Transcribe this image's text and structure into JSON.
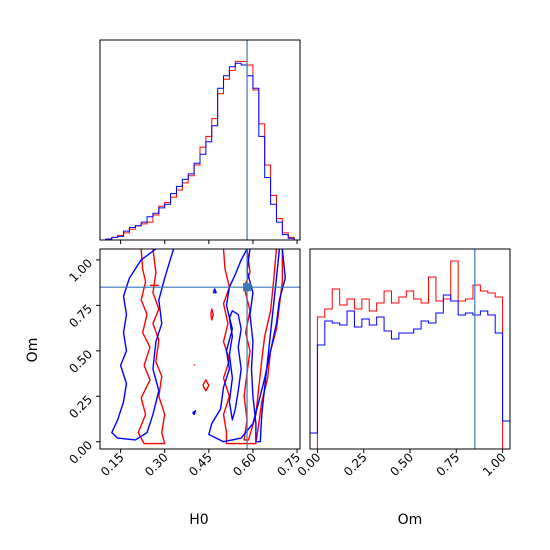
{
  "chart_data": [
    {
      "panel": "marginal-H0",
      "type": "histogram",
      "xlim": [
        0.08,
        0.76
      ],
      "xticks": [
        0.15,
        0.3,
        0.45,
        0.6,
        0.75
      ],
      "truth": 0.58,
      "series": [
        {
          "color": "#ff0000",
          "bin_edges": [
            0.08,
            0.1,
            0.12,
            0.14,
            0.16,
            0.18,
            0.2,
            0.22,
            0.24,
            0.26,
            0.28,
            0.3,
            0.32,
            0.34,
            0.36,
            0.38,
            0.4,
            0.42,
            0.44,
            0.46,
            0.48,
            0.5,
            0.52,
            0.54,
            0.56,
            0.58,
            0.6,
            0.62,
            0.64,
            0.66,
            0.68,
            0.7,
            0.72,
            0.74,
            0.76
          ],
          "counts": [
            0,
            0.5,
            1.5,
            2.5,
            4,
            6,
            8,
            9,
            10,
            14,
            19,
            21,
            24,
            28,
            32,
            36,
            42,
            52,
            58,
            68,
            82,
            90,
            95,
            100,
            100,
            98,
            84,
            65,
            42,
            25,
            12,
            4,
            1.5,
            0
          ]
        },
        {
          "color": "#0000ff",
          "bin_edges": [
            0.08,
            0.1,
            0.12,
            0.14,
            0.16,
            0.18,
            0.2,
            0.22,
            0.24,
            0.26,
            0.28,
            0.3,
            0.32,
            0.34,
            0.36,
            0.38,
            0.4,
            0.42,
            0.44,
            0.46,
            0.48,
            0.5,
            0.52,
            0.54,
            0.56,
            0.58,
            0.6,
            0.62,
            0.64,
            0.66,
            0.68,
            0.7,
            0.72,
            0.74,
            0.76
          ],
          "counts": [
            0,
            0.5,
            1.5,
            2,
            5,
            7,
            8,
            10,
            13,
            15,
            18,
            20,
            26,
            30,
            34,
            37,
            43,
            48,
            55,
            64,
            85,
            92,
            97,
            99,
            98,
            92,
            85,
            58,
            35,
            20,
            10,
            3,
            1,
            0
          ]
        }
      ]
    },
    {
      "panel": "marginal-Om",
      "type": "histogram",
      "xlim": [
        -0.04,
        1.04
      ],
      "xticks": [
        0.0,
        0.25,
        0.5,
        0.75,
        1.0
      ],
      "xlabel": "Om",
      "truth": 0.85,
      "series": [
        {
          "color": "#ff0000",
          "bin_edges": [
            0,
            0.04,
            0.08,
            0.12,
            0.16,
            0.2,
            0.24,
            0.28,
            0.32,
            0.36,
            0.4,
            0.44,
            0.48,
            0.52,
            0.56,
            0.6,
            0.64,
            0.68,
            0.72,
            0.76,
            0.8,
            0.84,
            0.88,
            0.92,
            0.96,
            1.0
          ],
          "counts": [
            0.66,
            0.7,
            0.8,
            0.72,
            0.75,
            0.7,
            0.75,
            0.69,
            0.73,
            0.79,
            0.73,
            0.76,
            0.79,
            0.75,
            0.73,
            0.86,
            0.74,
            0.75,
            0.94,
            0.74,
            0.75,
            0.82,
            0.79,
            0.78,
            0.76
          ]
        },
        {
          "color": "#0000ff",
          "bin_edges": [
            -0.04,
            0,
            0.04,
            0.08,
            0.12,
            0.16,
            0.2,
            0.24,
            0.28,
            0.32,
            0.36,
            0.4,
            0.44,
            0.48,
            0.52,
            0.56,
            0.6,
            0.64,
            0.68,
            0.72,
            0.76,
            0.8,
            0.84,
            0.88,
            0.92,
            0.96,
            1.0,
            1.04
          ],
          "counts": [
            0.08,
            0.52,
            0.64,
            0.63,
            0.62,
            0.69,
            0.61,
            0.65,
            0.62,
            0.66,
            0.59,
            0.55,
            0.58,
            0.58,
            0.6,
            0.64,
            0.63,
            0.68,
            0.77,
            0.74,
            0.67,
            0.68,
            0.67,
            0.69,
            0.67,
            0.58,
            0.14
          ]
        }
      ]
    },
    {
      "panel": "joint-H0-Om",
      "type": "contour",
      "xlabel": "H0",
      "ylabel": "Om",
      "xlim": [
        0.08,
        0.76
      ],
      "ylim": [
        -0.04,
        1.06
      ],
      "xticks": [
        0.15,
        0.3,
        0.45,
        0.6,
        0.75
      ],
      "yticks": [
        0.0,
        0.25,
        0.5,
        0.75,
        1.0
      ],
      "truth": [
        0.58,
        0.85
      ],
      "series": [
        {
          "color": "#ff0000",
          "contours": [
            [
              [
                0.22,
                1.06
              ],
              [
                0.225,
                0.95
              ],
              [
                0.235,
                0.88
              ],
              [
                0.22,
                0.78
              ],
              [
                0.24,
                0.7
              ],
              [
                0.225,
                0.6
              ],
              [
                0.25,
                0.52
              ],
              [
                0.23,
                0.42
              ],
              [
                0.25,
                0.34
              ],
              [
                0.22,
                0.24
              ],
              [
                0.235,
                0.15
              ],
              [
                0.21,
                0.05
              ],
              [
                0.23,
                -0.01
              ],
              [
                0.3,
                -0.01
              ],
              [
                0.29,
                0.05
              ],
              [
                0.3,
                0.15
              ],
              [
                0.28,
                0.25
              ],
              [
                0.29,
                0.36
              ],
              [
                0.27,
                0.44
              ],
              [
                0.28,
                0.56
              ],
              [
                0.26,
                0.65
              ],
              [
                0.28,
                0.73
              ],
              [
                0.26,
                0.82
              ],
              [
                0.27,
                0.93
              ],
              [
                0.26,
                1.06
              ]
            ],
            [
              [
                0.5,
                1.06
              ],
              [
                0.505,
                0.95
              ],
              [
                0.52,
                0.85
              ],
              [
                0.5,
                0.76
              ],
              [
                0.515,
                0.65
              ],
              [
                0.5,
                0.55
              ],
              [
                0.52,
                0.45
              ],
              [
                0.5,
                0.35
              ],
              [
                0.52,
                0.25
              ],
              [
                0.5,
                0.15
              ],
              [
                0.51,
                0.05
              ],
              [
                0.51,
                -0.01
              ],
              [
                0.61,
                -0.01
              ],
              [
                0.62,
                0.1
              ],
              [
                0.63,
                0.22
              ],
              [
                0.65,
                0.35
              ],
              [
                0.66,
                0.5
              ],
              [
                0.68,
                0.62
              ],
              [
                0.69,
                0.75
              ],
              [
                0.7,
                0.88
              ],
              [
                0.7,
                1.06
              ]
            ],
            [
              [
                0.58,
                1.06
              ],
              [
                0.59,
                0.93
              ],
              [
                0.57,
                0.85
              ],
              [
                0.59,
                0.72
              ],
              [
                0.575,
                0.6
              ],
              [
                0.59,
                0.5
              ],
              [
                0.58,
                0.38
              ],
              [
                0.57,
                0.25
              ],
              [
                0.58,
                0.12
              ],
              [
                0.57,
                0.01
              ],
              [
                0.585,
                0.01
              ],
              [
                0.61,
                0.15
              ],
              [
                0.62,
                0.3
              ],
              [
                0.63,
                0.45
              ],
              [
                0.64,
                0.58
              ],
              [
                0.66,
                0.72
              ],
              [
                0.67,
                0.88
              ],
              [
                0.68,
                1.06
              ]
            ],
            [
              [
                0.43,
                0.31
              ],
              [
                0.44,
                0.34
              ],
              [
                0.45,
                0.31
              ],
              [
                0.44,
                0.28
              ],
              [
                0.43,
                0.31
              ]
            ],
            [
              [
                0.457,
                0.7
              ],
              [
                0.46,
                0.73
              ],
              [
                0.465,
                0.7
              ],
              [
                0.46,
                0.67
              ],
              [
                0.457,
                0.7
              ]
            ],
            [
              [
                0.25,
                0.86
              ],
              [
                0.28,
                0.86
              ]
            ],
            [
              [
                0.4,
                0.42
              ],
              [
                0.403,
                0.425
              ]
            ]
          ]
        },
        {
          "color": "#0000ff",
          "contours": [
            [
              [
                0.27,
                1.06
              ],
              [
                0.22,
                1.0
              ],
              [
                0.18,
                0.9
              ],
              [
                0.16,
                0.8
              ],
              [
                0.17,
                0.7
              ],
              [
                0.16,
                0.6
              ],
              [
                0.17,
                0.5
              ],
              [
                0.15,
                0.42
              ],
              [
                0.17,
                0.32
              ],
              [
                0.16,
                0.22
              ],
              [
                0.14,
                0.12
              ],
              [
                0.12,
                0.05
              ],
              [
                0.14,
                0.02
              ],
              [
                0.2,
                0.01
              ],
              [
                0.24,
                0.05
              ],
              [
                0.26,
                0.15
              ],
              [
                0.28,
                0.28
              ],
              [
                0.26,
                0.4
              ],
              [
                0.27,
                0.55
              ],
              [
                0.29,
                0.65
              ],
              [
                0.28,
                0.78
              ],
              [
                0.3,
                0.9
              ],
              [
                0.33,
                1.06
              ]
            ],
            [
              [
                0.58,
                1.06
              ],
              [
                0.56,
                1.0
              ],
              [
                0.54,
                0.92
              ],
              [
                0.52,
                0.85
              ],
              [
                0.51,
                0.75
              ],
              [
                0.53,
                0.62
              ],
              [
                0.51,
                0.5
              ],
              [
                0.52,
                0.4
              ],
              [
                0.5,
                0.3
              ],
              [
                0.49,
                0.18
              ],
              [
                0.46,
                0.1
              ],
              [
                0.45,
                0.04
              ],
              [
                0.5,
                0.0
              ],
              [
                0.56,
                0.02
              ],
              [
                0.6,
                0.1
              ],
              [
                0.62,
                0.22
              ],
              [
                0.64,
                0.35
              ],
              [
                0.66,
                0.5
              ],
              [
                0.68,
                0.65
              ],
              [
                0.69,
                0.78
              ],
              [
                0.71,
                0.9
              ],
              [
                0.7,
                1.06
              ]
            ],
            [
              [
                0.52,
                0.68
              ],
              [
                0.53,
                0.72
              ],
              [
                0.55,
                0.7
              ],
              [
                0.56,
                0.62
              ],
              [
                0.55,
                0.52
              ],
              [
                0.56,
                0.4
              ],
              [
                0.55,
                0.28
              ],
              [
                0.54,
                0.18
              ],
              [
                0.53,
                0.12
              ],
              [
                0.52,
                0.22
              ],
              [
                0.53,
                0.35
              ],
              [
                0.52,
                0.48
              ],
              [
                0.53,
                0.58
              ],
              [
                0.52,
                0.68
              ]
            ],
            [
              [
                0.59,
                1.06
              ],
              [
                0.58,
                0.94
              ],
              [
                0.6,
                0.82
              ],
              [
                0.59,
                0.7
              ],
              [
                0.6,
                0.55
              ],
              [
                0.595,
                0.4
              ],
              [
                0.6,
                0.25
              ],
              [
                0.61,
                0.1
              ],
              [
                0.61,
                0.0
              ],
              [
                0.625,
                0.0
              ],
              [
                0.63,
                0.15
              ],
              [
                0.64,
                0.3
              ],
              [
                0.65,
                0.45
              ],
              [
                0.66,
                0.6
              ],
              [
                0.67,
                0.75
              ],
              [
                0.68,
                0.9
              ],
              [
                0.69,
                1.06
              ]
            ],
            [
              [
                0.395,
                0.16
              ],
              [
                0.405,
                0.17
              ],
              [
                0.4,
                0.15
              ],
              [
                0.395,
                0.16
              ]
            ],
            [
              [
                0.465,
                0.82
              ],
              [
                0.47,
                0.84
              ],
              [
                0.475,
                0.82
              ],
              [
                0.465,
                0.82
              ]
            ]
          ]
        }
      ]
    }
  ]
}
